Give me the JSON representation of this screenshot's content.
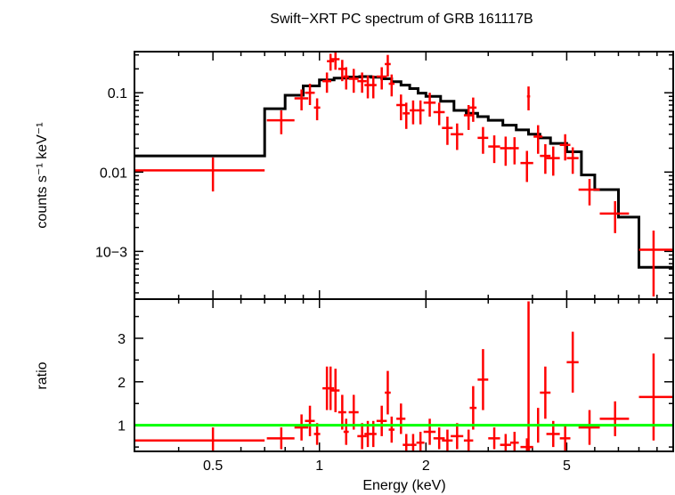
{
  "title": "Swift−XRT PC spectrum of GRB 161117B",
  "colors": {
    "data": "#ff0000",
    "model": "#000000",
    "unity": "#00ff00",
    "axes": "#000000"
  },
  "chart_data": [
    {
      "type": "scatter",
      "panel": "spectrum",
      "ylabel": "counts s⁻¹ keV⁻¹",
      "xscale": "log",
      "yscale": "log",
      "xlim": [
        0.3,
        10
      ],
      "ylim": [
        0.00025,
        0.33
      ],
      "y_tick_labels": [
        "0.1",
        "0.01",
        "10−3"
      ],
      "y_ticks": [
        0.1,
        0.01,
        0.001
      ],
      "model_step": {
        "edges": [
          0.3,
          0.7,
          0.8,
          0.9,
          1.0,
          1.1,
          1.2,
          1.3,
          1.4,
          1.5,
          1.6,
          1.7,
          1.8,
          1.9,
          2.0,
          2.2,
          2.4,
          2.6,
          2.8,
          3.0,
          3.3,
          3.6,
          3.9,
          4.2,
          4.5,
          5.0,
          5.5,
          6.0,
          7.0,
          8.0,
          10.0
        ],
        "values": [
          0.016,
          0.063,
          0.093,
          0.122,
          0.145,
          0.153,
          0.158,
          0.16,
          0.157,
          0.15,
          0.138,
          0.125,
          0.113,
          0.099,
          0.09,
          0.078,
          0.06,
          0.055,
          0.05,
          0.045,
          0.039,
          0.034,
          0.03,
          0.027,
          0.023,
          0.018,
          0.0092,
          0.006,
          0.0027,
          0.00063
        ]
      },
      "series": [
        {
          "x": [
            0.5,
            0.78,
            0.89,
            0.94,
            0.985,
            1.05,
            1.075,
            1.11,
            1.16,
            1.19,
            1.25,
            1.32,
            1.37,
            1.42,
            1.5,
            1.56,
            1.6,
            1.7,
            1.76,
            1.84,
            1.93,
            2.05,
            2.18,
            2.3,
            2.45,
            2.64,
            2.72,
            2.9,
            3.12,
            3.36,
            3.56,
            3.86,
            3.9,
            4.15,
            4.35,
            4.58,
            4.95,
            5.2,
            5.8,
            6.85,
            8.8
          ],
          "y": [
            0.0105,
            0.045,
            0.085,
            0.1,
            0.065,
            0.14,
            0.25,
            0.265,
            0.2,
            0.16,
            0.15,
            0.14,
            0.125,
            0.125,
            0.16,
            0.23,
            0.13,
            0.07,
            0.055,
            0.06,
            0.06,
            0.075,
            0.057,
            0.036,
            0.03,
            0.052,
            0.065,
            0.027,
            0.021,
            0.02,
            0.02,
            0.013,
            0.09,
            0.028,
            0.016,
            0.015,
            0.022,
            0.015,
            0.006,
            0.003,
            0.00105
          ],
          "xerr_lo": [
            0.2,
            0.07,
            0.04,
            0.03,
            0.02,
            0.03,
            0.025,
            0.03,
            0.03,
            0.02,
            0.04,
            0.04,
            0.03,
            0.03,
            0.05,
            0.03,
            0.03,
            0.05,
            0.04,
            0.04,
            0.05,
            0.08,
            0.08,
            0.08,
            0.1,
            0.08,
            0.06,
            0.1,
            0.12,
            0.12,
            0.1,
            0.16,
            0.04,
            0.12,
            0.15,
            0.2,
            0.17,
            0.2,
            0.4,
            0.65,
            0.8
          ],
          "xerr_hi": [
            0.2,
            0.07,
            0.04,
            0.03,
            0.02,
            0.03,
            0.025,
            0.03,
            0.03,
            0.02,
            0.04,
            0.04,
            0.03,
            0.03,
            0.05,
            0.03,
            0.03,
            0.05,
            0.04,
            0.04,
            0.05,
            0.08,
            0.08,
            0.08,
            0.1,
            0.08,
            0.06,
            0.1,
            0.12,
            0.12,
            0.1,
            0.16,
            0.04,
            0.12,
            0.15,
            0.2,
            0.17,
            0.2,
            0.4,
            0.65,
            1.2
          ],
          "yerr_lo": [
            0.0048,
            0.015,
            0.025,
            0.03,
            0.02,
            0.04,
            0.06,
            0.07,
            0.06,
            0.05,
            0.05,
            0.04,
            0.04,
            0.04,
            0.05,
            0.07,
            0.04,
            0.025,
            0.02,
            0.02,
            0.02,
            0.025,
            0.018,
            0.014,
            0.011,
            0.018,
            0.022,
            0.01,
            0.008,
            0.008,
            0.0075,
            0.0055,
            0.03,
            0.011,
            0.0065,
            0.006,
            0.008,
            0.0055,
            0.0022,
            0.0013,
            0.00078
          ],
          "yerr_hi": [
            0.0048,
            0.015,
            0.025,
            0.03,
            0.02,
            0.04,
            0.06,
            0.07,
            0.06,
            0.05,
            0.05,
            0.04,
            0.04,
            0.04,
            0.05,
            0.07,
            0.04,
            0.025,
            0.02,
            0.02,
            0.02,
            0.025,
            0.018,
            0.014,
            0.011,
            0.018,
            0.022,
            0.01,
            0.008,
            0.008,
            0.0075,
            0.0055,
            0.03,
            0.011,
            0.0065,
            0.006,
            0.008,
            0.0055,
            0.0022,
            0.0013,
            0.00078
          ]
        }
      ]
    },
    {
      "type": "scatter",
      "panel": "ratio",
      "xlabel": "Energy (keV)",
      "ylabel": "ratio",
      "xscale": "log",
      "xlim": [
        0.3,
        10
      ],
      "ylim": [
        0.4,
        3.9
      ],
      "x_tick_labels": [
        "0.5",
        "1",
        "2",
        "5"
      ],
      "x_ticks": [
        0.5,
        1,
        2,
        5
      ],
      "y_tick_labels": [
        "1",
        "2",
        "3"
      ],
      "y_ticks": [
        1,
        2,
        3
      ],
      "reference_line": 1,
      "series": [
        {
          "x": [
            0.5,
            0.78,
            0.89,
            0.94,
            0.985,
            1.05,
            1.075,
            1.11,
            1.16,
            1.19,
            1.25,
            1.32,
            1.37,
            1.42,
            1.5,
            1.56,
            1.6,
            1.7,
            1.76,
            1.84,
            1.93,
            2.05,
            2.18,
            2.3,
            2.45,
            2.64,
            2.72,
            2.9,
            3.12,
            3.36,
            3.56,
            3.86,
            3.9,
            4.15,
            4.35,
            4.58,
            4.95,
            5.2,
            5.8,
            6.85,
            8.8
          ],
          "y": [
            0.65,
            0.7,
            0.95,
            1.1,
            0.8,
            1.85,
            1.85,
            1.8,
            1.3,
            0.85,
            1.3,
            0.75,
            0.8,
            0.8,
            1.1,
            1.75,
            0.9,
            1.15,
            0.55,
            0.55,
            0.6,
            0.85,
            0.7,
            0.65,
            0.75,
            0.65,
            1.4,
            2.05,
            0.7,
            0.55,
            0.6,
            0.5,
            0.45,
            1.0,
            1.75,
            0.8,
            0.7,
            2.45,
            0.95,
            1.15,
            1.65
          ],
          "xerr_lo": [
            0.2,
            0.07,
            0.04,
            0.03,
            0.02,
            0.03,
            0.025,
            0.03,
            0.03,
            0.02,
            0.04,
            0.04,
            0.03,
            0.03,
            0.05,
            0.03,
            0.03,
            0.05,
            0.04,
            0.04,
            0.05,
            0.08,
            0.08,
            0.08,
            0.1,
            0.08,
            0.06,
            0.1,
            0.12,
            0.12,
            0.1,
            0.16,
            0.04,
            0.12,
            0.15,
            0.2,
            0.17,
            0.2,
            0.4,
            0.65,
            0.8
          ],
          "xerr_hi": [
            0.2,
            0.07,
            0.04,
            0.03,
            0.02,
            0.03,
            0.025,
            0.03,
            0.03,
            0.02,
            0.04,
            0.04,
            0.03,
            0.03,
            0.05,
            0.03,
            0.03,
            0.05,
            0.04,
            0.04,
            0.05,
            0.08,
            0.08,
            0.08,
            0.1,
            0.08,
            0.06,
            0.1,
            0.12,
            0.12,
            0.1,
            0.16,
            0.04,
            0.12,
            0.15,
            0.2,
            0.17,
            0.2,
            0.4,
            0.65,
            1.2
          ],
          "yerr_lo": [
            0.3,
            0.25,
            0.3,
            0.35,
            0.25,
            0.5,
            0.5,
            0.5,
            0.4,
            0.3,
            0.4,
            0.3,
            0.3,
            0.3,
            0.35,
            0.5,
            0.3,
            0.35,
            0.25,
            0.25,
            0.25,
            0.3,
            0.25,
            0.25,
            0.3,
            0.25,
            0.5,
            0.7,
            0.25,
            0.25,
            0.25,
            0.2,
            0.25,
            0.4,
            0.6,
            0.3,
            0.3,
            0.7,
            0.4,
            0.4,
            1.0
          ],
          "yerr_hi": [
            0.3,
            0.25,
            0.3,
            0.35,
            0.25,
            0.5,
            0.5,
            0.5,
            0.4,
            0.3,
            0.4,
            0.3,
            0.3,
            0.3,
            0.35,
            0.5,
            0.3,
            0.35,
            0.25,
            0.25,
            0.25,
            0.3,
            0.25,
            0.25,
            0.3,
            0.25,
            0.5,
            0.7,
            0.25,
            0.25,
            0.25,
            0.2,
            3.4,
            0.4,
            0.6,
            0.3,
            0.3,
            0.7,
            0.4,
            0.4,
            1.0
          ]
        }
      ]
    }
  ]
}
